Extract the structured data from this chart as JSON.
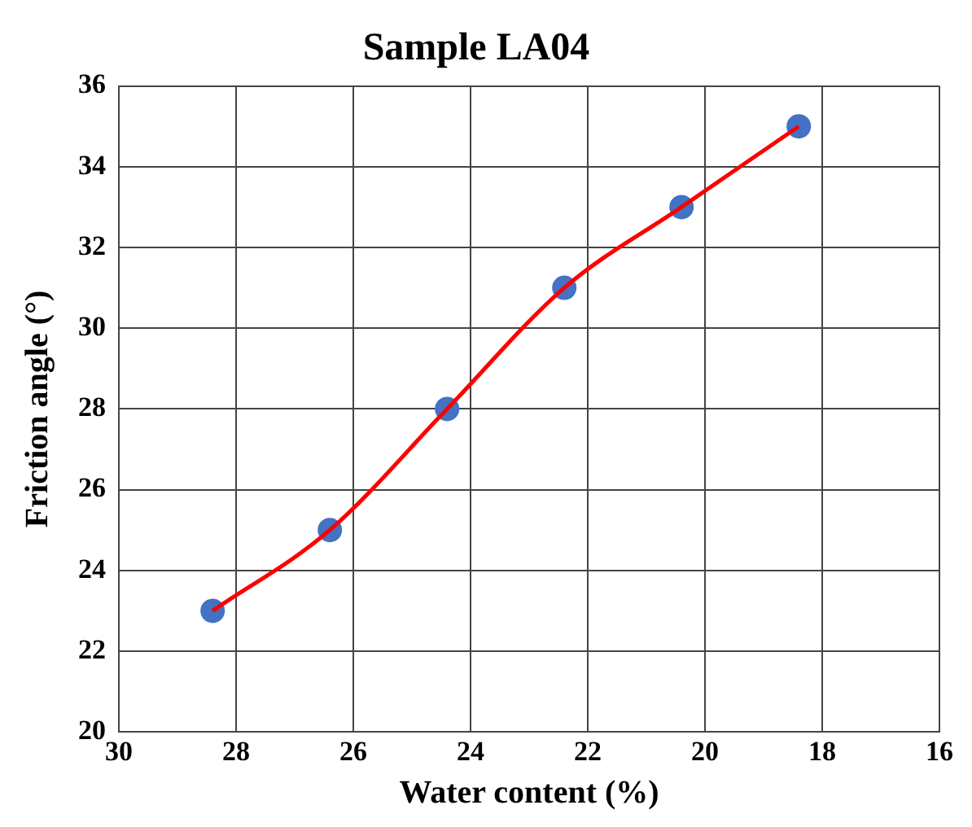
{
  "chart_data": {
    "type": "line",
    "title": "Sample LA04",
    "xlabel": "Water content (%)",
    "ylabel": "Friction angle (°)",
    "x": [
      28.4,
      26.4,
      24.4,
      22.4,
      20.4,
      18.4
    ],
    "series": [
      {
        "color": "#ff0000",
        "marker": "none",
        "values": [
          23,
          25,
          28,
          31,
          33,
          35
        ]
      },
      {
        "type": "scatter",
        "color": "#4472c4",
        "marker": "circle",
        "values": [
          23,
          25,
          28,
          31,
          33,
          35
        ]
      }
    ],
    "xlim": [
      30,
      16
    ],
    "xticks": [
      30,
      28,
      26,
      24,
      22,
      20,
      18,
      16
    ],
    "ylim": [
      20,
      36
    ],
    "yticks": [
      20,
      22,
      24,
      26,
      28,
      30,
      32,
      34,
      36
    ],
    "grid": true,
    "legend": false,
    "line_style": "solid"
  }
}
